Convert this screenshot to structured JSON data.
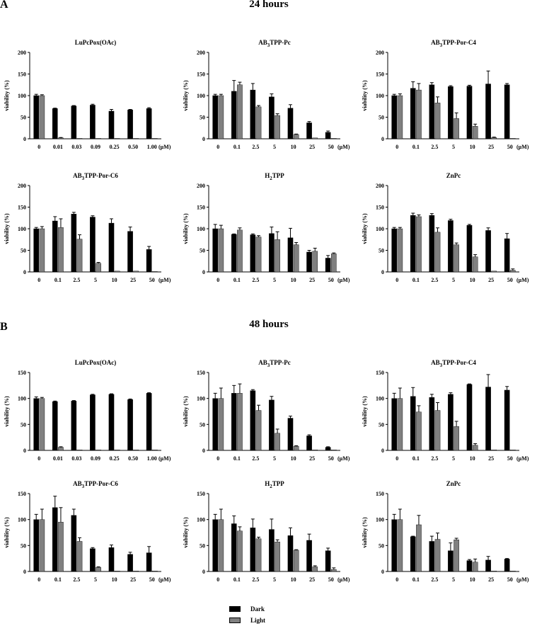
{
  "panels": [
    {
      "label": "A",
      "title": "24 hours"
    },
    {
      "label": "B",
      "title": "48 hours"
    }
  ],
  "legend": [
    {
      "name": "Dark",
      "color": "#000000"
    },
    {
      "name": "Light",
      "color": "#808080"
    }
  ],
  "chart_data": [
    {
      "type": "bar",
      "panel": "A",
      "title": "LuPcPox(OAc)",
      "ylabel": "viability (%)",
      "ylim": [
        0,
        200
      ],
      "yticks": [
        0,
        50,
        100,
        150,
        200
      ],
      "categories": [
        "0",
        "0.01",
        "0.03",
        "0.09",
        "0.25",
        "0.50",
        "1.00"
      ],
      "unit": "(μM)",
      "series": [
        {
          "name": "Dark",
          "values": [
            100,
            70,
            76,
            78,
            64,
            67,
            70
          ],
          "errors": [
            3,
            1,
            1,
            2,
            4,
            1,
            2
          ]
        },
        {
          "name": "Light",
          "values": [
            100,
            2,
            1,
            1,
            1,
            1,
            1
          ],
          "errors": [
            2,
            1,
            0,
            0,
            0,
            0,
            0
          ]
        }
      ]
    },
    {
      "type": "bar",
      "panel": "A",
      "title": "AB3TPP-Pc",
      "ylabel": "viability (%)",
      "ylim": [
        0,
        200
      ],
      "yticks": [
        0,
        50,
        100,
        150,
        200
      ],
      "categories": [
        "0",
        "0.1",
        "2.5",
        "5",
        "10",
        "25",
        "50"
      ],
      "unit": "(μM)",
      "series": [
        {
          "name": "Dark",
          "values": [
            100,
            110,
            113,
            97,
            71,
            37,
            15
          ],
          "errors": [
            3,
            25,
            15,
            7,
            8,
            3,
            3
          ]
        },
        {
          "name": "Light",
          "values": [
            100,
            125,
            74,
            54,
            10,
            2,
            1
          ],
          "errors": [
            3,
            6,
            3,
            4,
            1,
            0,
            0
          ]
        }
      ]
    },
    {
      "type": "bar",
      "panel": "A",
      "title": "AB3TPP-Por-C4",
      "ylabel": "viability (%)",
      "ylim": [
        0,
        200
      ],
      "yticks": [
        0,
        50,
        100,
        150,
        200
      ],
      "categories": [
        "0",
        "0.1",
        "2.5",
        "5",
        "10",
        "25",
        "50"
      ],
      "unit": "(μM)",
      "series": [
        {
          "name": "Dark",
          "values": [
            100,
            117,
            125,
            121,
            122,
            127,
            125
          ],
          "errors": [
            3,
            15,
            5,
            2,
            2,
            30,
            3
          ]
        },
        {
          "name": "Light",
          "values": [
            100,
            113,
            83,
            47,
            29,
            3,
            1
          ],
          "errors": [
            4,
            15,
            14,
            13,
            5,
            1,
            0
          ]
        }
      ]
    },
    {
      "type": "bar",
      "panel": "A",
      "title": "AB3TPP-Por-C6",
      "ylabel": "viability (%)",
      "ylim": [
        0,
        200
      ],
      "yticks": [
        0,
        50,
        100,
        150,
        200
      ],
      "categories": [
        "0",
        "0.1",
        "2.5",
        "5",
        "10",
        "25",
        "50"
      ],
      "unit": "(μM)",
      "series": [
        {
          "name": "Dark",
          "values": [
            100,
            118,
            134,
            127,
            113,
            94,
            52
          ],
          "errors": [
            3,
            10,
            4,
            3,
            10,
            10,
            7
          ]
        },
        {
          "name": "Light",
          "values": [
            100,
            103,
            76,
            20,
            2,
            2,
            1
          ],
          "errors": [
            5,
            20,
            10,
            2,
            0,
            0,
            0
          ]
        }
      ]
    },
    {
      "type": "bar",
      "panel": "A",
      "title": "H2TPP",
      "ylabel": "viability (%)",
      "ylim": [
        0,
        200
      ],
      "yticks": [
        0,
        50,
        100,
        150,
        200
      ],
      "categories": [
        "0",
        "0.1",
        "2.5",
        "5",
        "10",
        "25",
        "50"
      ],
      "unit": "(μM)",
      "series": [
        {
          "name": "Dark",
          "values": [
            100,
            87,
            86,
            89,
            79,
            46,
            32
          ],
          "errors": [
            10,
            1,
            2,
            15,
            22,
            4,
            6
          ]
        },
        {
          "name": "Light",
          "values": [
            100,
            97,
            81,
            75,
            63,
            48,
            42
          ],
          "errors": [
            8,
            5,
            3,
            18,
            5,
            7,
            2
          ]
        }
      ]
    },
    {
      "type": "bar",
      "panel": "A",
      "title": "ZnPc",
      "ylabel": "viability (%)",
      "ylim": [
        0,
        200
      ],
      "yticks": [
        0,
        50,
        100,
        150,
        200
      ],
      "categories": [
        "0",
        "0.1",
        "2.5",
        "5",
        "10",
        "25",
        "50"
      ],
      "unit": "(μM)",
      "series": [
        {
          "name": "Dark",
          "values": [
            100,
            131,
            131,
            119,
            108,
            96,
            77
          ],
          "errors": [
            3,
            5,
            4,
            3,
            2,
            6,
            12
          ]
        },
        {
          "name": "Light",
          "values": [
            100,
            128,
            92,
            63,
            35,
            2,
            4
          ],
          "errors": [
            3,
            4,
            10,
            4,
            5,
            0,
            3
          ]
        }
      ]
    },
    {
      "type": "bar",
      "panel": "B",
      "title": "LuPcPox(OAc)",
      "ylabel": "viability (%)",
      "ylim": [
        0,
        150
      ],
      "yticks": [
        0,
        50,
        100,
        150
      ],
      "categories": [
        "0",
        "0.01",
        "0.03",
        "0.09",
        "0.25",
        "0.50",
        "1.00"
      ],
      "unit": "(μM)",
      "series": [
        {
          "name": "Dark",
          "values": [
            100,
            94,
            95,
            107,
            108,
            98,
            110
          ],
          "errors": [
            3,
            1,
            1,
            1,
            1,
            1,
            1
          ]
        },
        {
          "name": "Light",
          "values": [
            100,
            6,
            1,
            1,
            1,
            1,
            1
          ],
          "errors": [
            2,
            1,
            0,
            0,
            0,
            0,
            0
          ]
        }
      ]
    },
    {
      "type": "bar",
      "panel": "B",
      "title": "AB3TPP-Pc",
      "ylabel": "viability (%)",
      "ylim": [
        0,
        150
      ],
      "yticks": [
        0,
        50,
        100,
        150
      ],
      "categories": [
        "0",
        "0.1",
        "2.5",
        "5",
        "10",
        "25",
        "50"
      ],
      "unit": "(μM)",
      "series": [
        {
          "name": "Dark",
          "values": [
            100,
            110,
            115,
            97,
            62,
            28,
            6
          ],
          "errors": [
            10,
            15,
            2,
            7,
            4,
            2,
            1
          ]
        },
        {
          "name": "Light",
          "values": [
            100,
            110,
            77,
            33,
            8,
            1,
            1
          ],
          "errors": [
            20,
            18,
            10,
            8,
            1,
            0,
            0
          ]
        }
      ]
    },
    {
      "type": "bar",
      "panel": "B",
      "title": "AB3TPP-Por-C4",
      "ylabel": "viability (%)",
      "ylim": [
        0,
        150
      ],
      "yticks": [
        0,
        50,
        100,
        150
      ],
      "categories": [
        "0",
        "0.1",
        "2.5",
        "5",
        "10",
        "25",
        "50"
      ],
      "unit": "(μM)",
      "series": [
        {
          "name": "Dark",
          "values": [
            100,
            104,
            102,
            108,
            127,
            122,
            116
          ],
          "errors": [
            10,
            17,
            6,
            3,
            1,
            24,
            7
          ]
        },
        {
          "name": "Light",
          "values": [
            100,
            74,
            77,
            46,
            10,
            1,
            1
          ],
          "errors": [
            20,
            12,
            15,
            10,
            3,
            0,
            0
          ]
        }
      ]
    },
    {
      "type": "bar",
      "panel": "B",
      "title": "AB3TPP-Por-C6",
      "ylabel": "viability (%)",
      "ylim": [
        0,
        150
      ],
      "yticks": [
        0,
        50,
        100,
        150
      ],
      "categories": [
        "0",
        "0.1",
        "2.5",
        "5",
        "10",
        "25",
        "50"
      ],
      "unit": "(μM)",
      "series": [
        {
          "name": "Dark",
          "values": [
            100,
            123,
            108,
            44,
            46,
            33,
            36
          ],
          "errors": [
            10,
            22,
            12,
            2,
            5,
            4,
            12
          ]
        },
        {
          "name": "Light",
          "values": [
            100,
            95,
            58,
            8,
            1,
            1,
            1
          ],
          "errors": [
            20,
            28,
            7,
            1,
            0,
            0,
            0
          ]
        }
      ]
    },
    {
      "type": "bar",
      "panel": "B",
      "title": "H2TPP",
      "ylabel": "viability (%)",
      "ylim": [
        0,
        150
      ],
      "yticks": [
        0,
        50,
        100,
        150
      ],
      "categories": [
        "0",
        "0.1",
        "2.5",
        "5",
        "10",
        "25",
        "50"
      ],
      "unit": "(μM)",
      "series": [
        {
          "name": "Dark",
          "values": [
            100,
            92,
            84,
            81,
            69,
            60,
            40
          ],
          "errors": [
            10,
            15,
            17,
            20,
            15,
            12,
            5
          ]
        },
        {
          "name": "Light",
          "values": [
            100,
            78,
            63,
            57,
            41,
            9,
            4
          ],
          "errors": [
            20,
            8,
            3,
            4,
            1,
            2,
            3
          ]
        }
      ]
    },
    {
      "type": "bar",
      "panel": "B",
      "title": "ZnPc",
      "ylabel": "viability (%)",
      "ylim": [
        0,
        150
      ],
      "yticks": [
        0,
        50,
        100,
        150
      ],
      "categories": [
        "0",
        "0.1",
        "2.5",
        "5",
        "10",
        "25",
        "50"
      ],
      "unit": "(μM)",
      "series": [
        {
          "name": "Dark",
          "values": [
            100,
            67,
            58,
            40,
            21,
            22,
            24
          ],
          "errors": [
            10,
            1,
            10,
            15,
            2,
            7,
            1
          ]
        },
        {
          "name": "Light",
          "values": [
            100,
            90,
            62,
            61,
            18,
            1,
            1
          ],
          "errors": [
            20,
            18,
            12,
            3,
            6,
            0,
            0
          ]
        }
      ]
    }
  ]
}
